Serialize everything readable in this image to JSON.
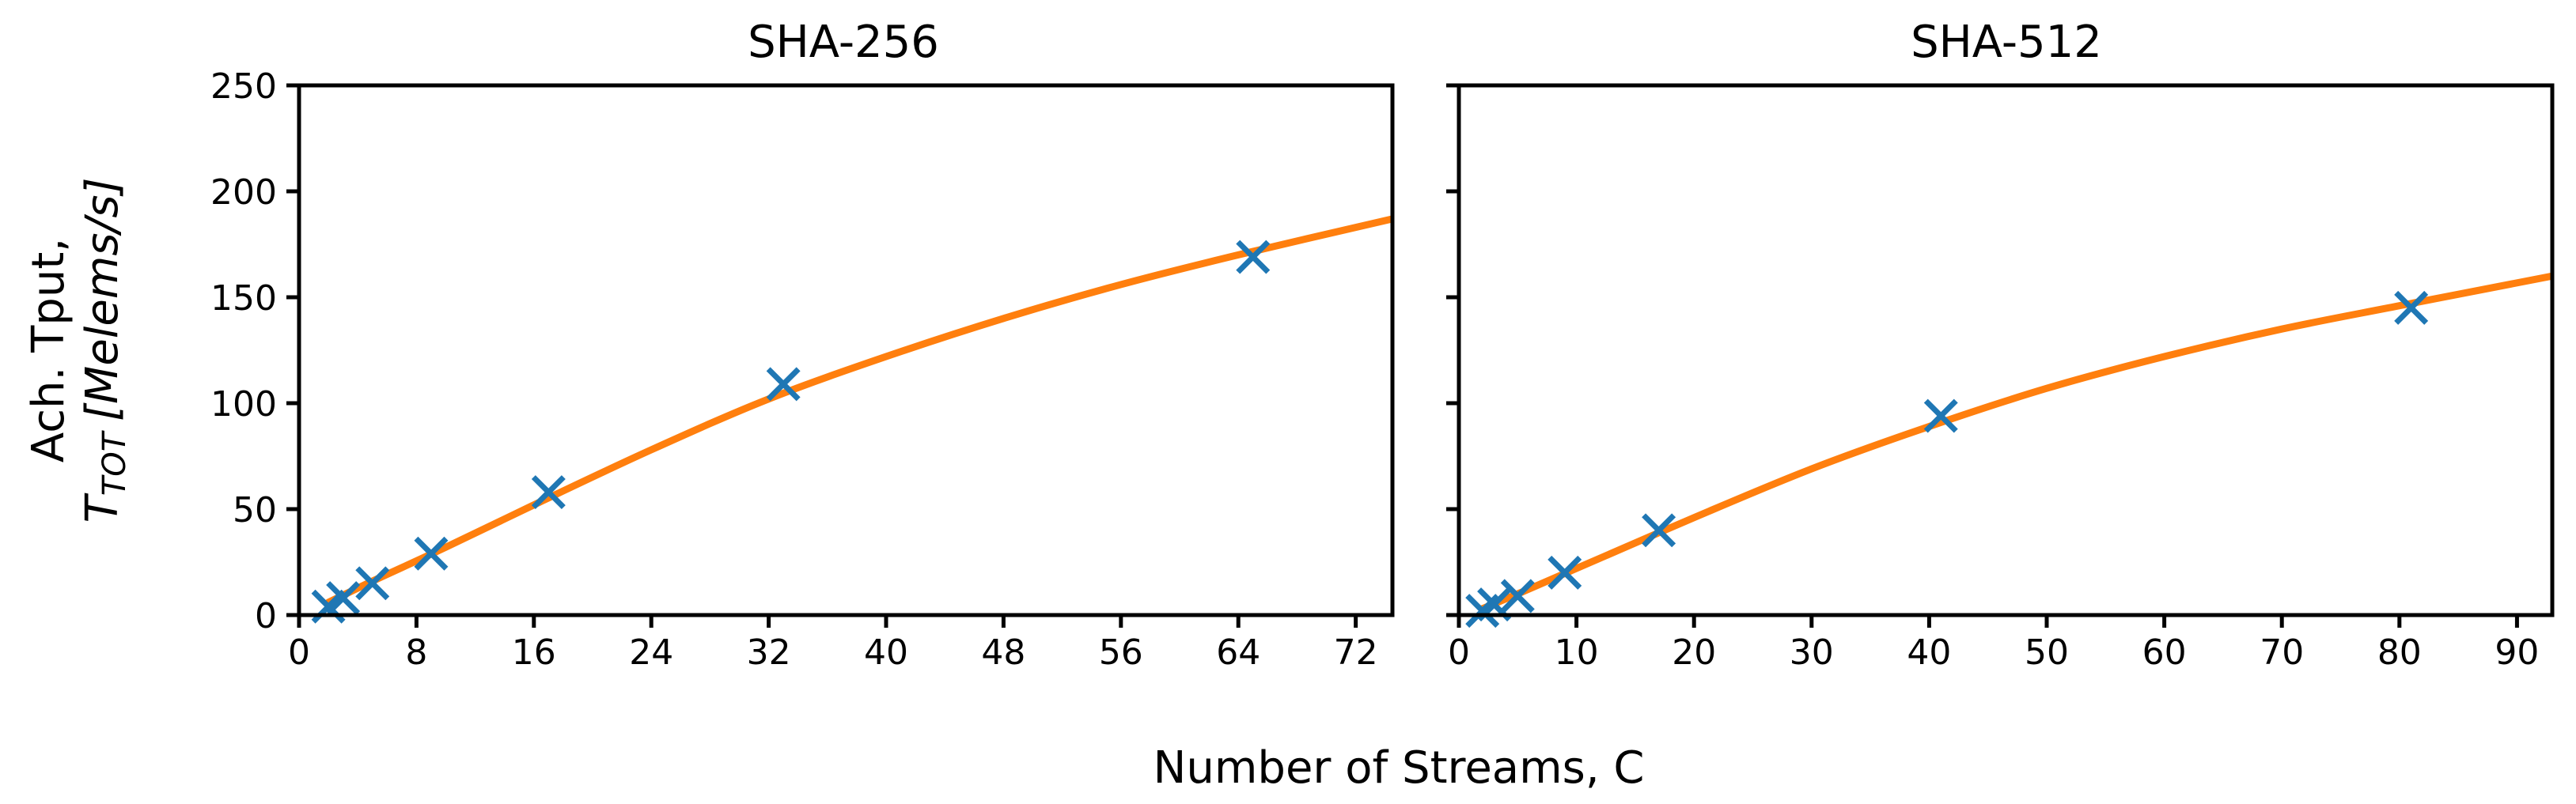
{
  "chart_data": {
    "type": "scatter",
    "shared_xlabel": "Number of Streams, C",
    "ylabel_line1": "Ach. Tput,",
    "ylabel_line2_symbol": "T",
    "ylabel_line2_subscript": "TOT",
    "ylabel_line2_unit": "[Melems/s]",
    "ylim": [
      0,
      250
    ],
    "yticks": [
      0,
      50,
      100,
      150,
      200,
      250
    ],
    "grid": false,
    "colors": {
      "markers": "#1f77b4",
      "fit_line": "#ff7f0e"
    },
    "panels": [
      {
        "title": "SHA-256",
        "xlim": [
          0,
          74.5
        ],
        "xticks": [
          0,
          8,
          16,
          24,
          32,
          40,
          48,
          56,
          64,
          72
        ],
        "points": [
          {
            "x": 2,
            "y": 4
          },
          {
            "x": 3,
            "y": 8
          },
          {
            "x": 5,
            "y": 15
          },
          {
            "x": 9,
            "y": 29
          },
          {
            "x": 17,
            "y": 58
          },
          {
            "x": 33,
            "y": 109
          },
          {
            "x": 65,
            "y": 169
          }
        ],
        "fit": [
          {
            "x": 2,
            "y": 6
          },
          {
            "x": 5,
            "y": 16
          },
          {
            "x": 10,
            "y": 32
          },
          {
            "x": 16,
            "y": 52
          },
          {
            "x": 24,
            "y": 78
          },
          {
            "x": 32,
            "y": 102
          },
          {
            "x": 40,
            "y": 122
          },
          {
            "x": 48,
            "y": 140
          },
          {
            "x": 56,
            "y": 156
          },
          {
            "x": 64,
            "y": 170
          },
          {
            "x": 74.5,
            "y": 187
          }
        ]
      },
      {
        "title": "SHA-512",
        "xlim": [
          0,
          93
        ],
        "xticks": [
          0,
          10,
          20,
          30,
          40,
          50,
          60,
          70,
          80,
          90
        ],
        "points": [
          {
            "x": 2,
            "y": 2
          },
          {
            "x": 3,
            "y": 5
          },
          {
            "x": 5,
            "y": 9
          },
          {
            "x": 9,
            "y": 20
          },
          {
            "x": 17,
            "y": 40
          },
          {
            "x": 41,
            "y": 94
          },
          {
            "x": 81,
            "y": 145
          }
        ],
        "fit": [
          {
            "x": 2,
            "y": 3
          },
          {
            "x": 5,
            "y": 10
          },
          {
            "x": 10,
            "y": 22
          },
          {
            "x": 20,
            "y": 46
          },
          {
            "x": 30,
            "y": 69
          },
          {
            "x": 40,
            "y": 89
          },
          {
            "x": 50,
            "y": 107
          },
          {
            "x": 60,
            "y": 122
          },
          {
            "x": 70,
            "y": 135
          },
          {
            "x": 80,
            "y": 146
          },
          {
            "x": 93,
            "y": 160
          }
        ]
      }
    ]
  }
}
